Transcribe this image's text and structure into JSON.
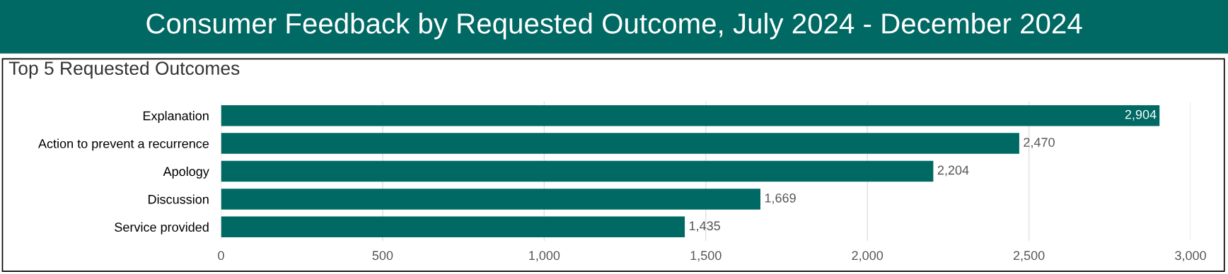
{
  "chart_data": {
    "type": "bar",
    "orientation": "horizontal",
    "title": "Consumer Feedback by Requested Outcome, July 2024 - December 2024",
    "subtitle": "Top 5 Requested Outcomes",
    "categories": [
      "Explanation",
      "Action to prevent a recurrence",
      "Apology",
      "Discussion",
      "Service provided"
    ],
    "values": [
      2904,
      2470,
      2204,
      1669,
      1435
    ],
    "color": "#006963",
    "value_labels": [
      "2,904",
      "2,470",
      "2,204",
      "1,669",
      "1,435"
    ],
    "xlim": [
      0,
      3000
    ],
    "xticks": [
      0,
      500,
      {
        "value": 1000,
        "label": "1,000"
      },
      {
        "value": 1500,
        "label": "1,500"
      },
      {
        "value": 2000,
        "label": "2,000"
      },
      {
        "value": 2500,
        "label": "2,500"
      },
      {
        "value": 3000,
        "label": "3,000"
      }
    ],
    "grid": "x",
    "legend": false
  }
}
